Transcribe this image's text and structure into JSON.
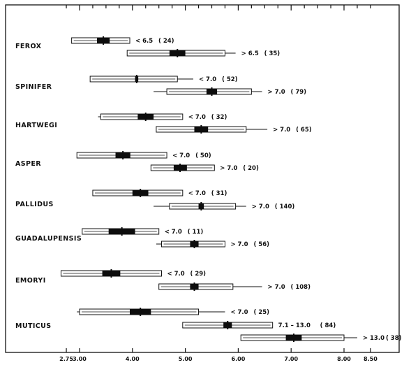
{
  "chart_data": {
    "type": "box",
    "title": "",
    "xlabel": "",
    "ylabel": "",
    "xlim": [
      2.65,
      8.6
    ],
    "x_tick_labels": [
      {
        "value": 2.75,
        "label": "2.75"
      },
      {
        "value": 3.0,
        "label": "3.00"
      },
      {
        "value": 4.0,
        "label": "4.00"
      },
      {
        "value": 5.0,
        "label": "5.00"
      },
      {
        "value": 6.0,
        "label": "6.00"
      },
      {
        "value": 7.0,
        "label": "7.00"
      },
      {
        "value": 8.0,
        "label": "8.00"
      },
      {
        "value": 8.5,
        "label": "8.50"
      }
    ],
    "top_ticks": [
      2.75,
      3.0,
      3.25,
      3.5,
      3.75,
      4.0,
      4.25,
      4.5,
      4.75,
      5.0,
      5.25,
      5.5,
      5.75,
      6.0,
      6.25,
      6.5,
      6.75,
      7.0,
      7.25,
      7.5,
      7.75,
      8.0,
      8.25,
      8.5
    ],
    "groups": [
      {
        "name": "FEROX",
        "rows": [
          {
            "min": 2.85,
            "q1": 2.85,
            "median": 3.45,
            "q3": 3.95,
            "max": 3.95,
            "mean_low": 3.33,
            "mean_high": 3.57,
            "label": "< 6.5",
            "n": "( 24)"
          },
          {
            "min": 3.9,
            "q1": 3.9,
            "median": 4.85,
            "q3": 5.75,
            "max": 5.95,
            "mean_low": 4.7,
            "mean_high": 5.0,
            "label": "> 6.5",
            "n": "( 35)"
          }
        ]
      },
      {
        "name": "SPINIFER",
        "rows": [
          {
            "min": 3.2,
            "q1": 3.2,
            "median": 4.08,
            "q3": 4.85,
            "max": 5.15,
            "mean_low": 4.05,
            "mean_high": 4.11,
            "label": "< 7.0",
            "n": "( 52)"
          },
          {
            "min": 4.4,
            "q1": 4.65,
            "median": 5.5,
            "q3": 6.25,
            "max": 6.45,
            "mean_low": 5.4,
            "mean_high": 5.6,
            "label": "> 7.0",
            "n": "( 79)"
          }
        ]
      },
      {
        "name": "HARTWEGI",
        "rows": [
          {
            "min": 3.35,
            "q1": 3.4,
            "median": 4.25,
            "q3": 4.95,
            "max": 4.95,
            "mean_low": 4.1,
            "mean_high": 4.4,
            "label": "< 7.0",
            "n": "( 32)"
          },
          {
            "min": 4.45,
            "q1": 4.45,
            "median": 5.3,
            "q3": 6.15,
            "max": 6.55,
            "mean_low": 5.17,
            "mean_high": 5.43,
            "label": "> 7.0",
            "n": "( 65)"
          }
        ]
      },
      {
        "name": "ASPER",
        "rows": [
          {
            "min": 2.95,
            "q1": 2.95,
            "median": 3.82,
            "q3": 4.65,
            "max": 4.65,
            "mean_low": 3.68,
            "mean_high": 3.96,
            "label": "< 7.0",
            "n": "( 50)"
          },
          {
            "min": 4.35,
            "q1": 4.35,
            "median": 4.9,
            "q3": 5.55,
            "max": 5.55,
            "mean_low": 4.78,
            "mean_high": 5.03,
            "label": "> 7.0",
            "n": "( 20)"
          }
        ]
      },
      {
        "name": "PALLIDUS",
        "rows": [
          {
            "min": 3.25,
            "q1": 3.25,
            "median": 4.15,
            "q3": 4.95,
            "max": 4.95,
            "mean_low": 4.0,
            "mean_high": 4.3,
            "label": "< 7.0",
            "n": "( 31)"
          },
          {
            "min": 4.4,
            "q1": 4.7,
            "median": 5.3,
            "q3": 5.95,
            "max": 6.15,
            "mean_low": 5.25,
            "mean_high": 5.35,
            "label": "> 7.0",
            "n": "( 140)"
          }
        ]
      },
      {
        "name": "GUADALUPENSIS",
        "rows": [
          {
            "min": 3.05,
            "q1": 3.05,
            "median": 3.8,
            "q3": 4.5,
            "max": 4.5,
            "mean_low": 3.55,
            "mean_high": 4.05,
            "label": "< 7.0",
            "n": "( 11)"
          },
          {
            "min": 4.45,
            "q1": 4.55,
            "median": 5.17,
            "q3": 5.75,
            "max": 5.75,
            "mean_low": 5.09,
            "mean_high": 5.25,
            "label": "> 7.0",
            "n": "( 56)"
          }
        ]
      },
      {
        "name": "EMORYI",
        "rows": [
          {
            "min": 2.65,
            "q1": 2.65,
            "median": 3.6,
            "q3": 4.55,
            "max": 4.55,
            "mean_low": 3.43,
            "mean_high": 3.77,
            "label": "< 7.0",
            "n": "( 29)"
          },
          {
            "min": 4.5,
            "q1": 4.5,
            "median": 5.17,
            "q3": 5.9,
            "max": 6.45,
            "mean_low": 5.09,
            "mean_high": 5.25,
            "label": "> 7.0",
            "n": "( 108)"
          }
        ]
      },
      {
        "name": "MUTICUS",
        "rows": [
          {
            "min": 2.95,
            "q1": 3.0,
            "median": 4.15,
            "q3": 5.25,
            "max": 5.75,
            "mean_low": 3.95,
            "mean_high": 4.35,
            "label": "< 7.0",
            "n": "( 25)"
          },
          {
            "min": 4.95,
            "q1": 4.95,
            "median": 5.8,
            "q3": 6.65,
            "max": 6.65,
            "mean_low": 5.72,
            "mean_high": 5.88,
            "label": "7.1 – 13.0",
            "n": "( 84)"
          },
          {
            "min": 6.05,
            "q1": 6.05,
            "median": 7.05,
            "q3": 8.0,
            "max": 8.25,
            "mean_low": 6.9,
            "mean_high": 7.2,
            "label": "> 13.0",
            "n": "( 38)"
          }
        ]
      }
    ]
  }
}
